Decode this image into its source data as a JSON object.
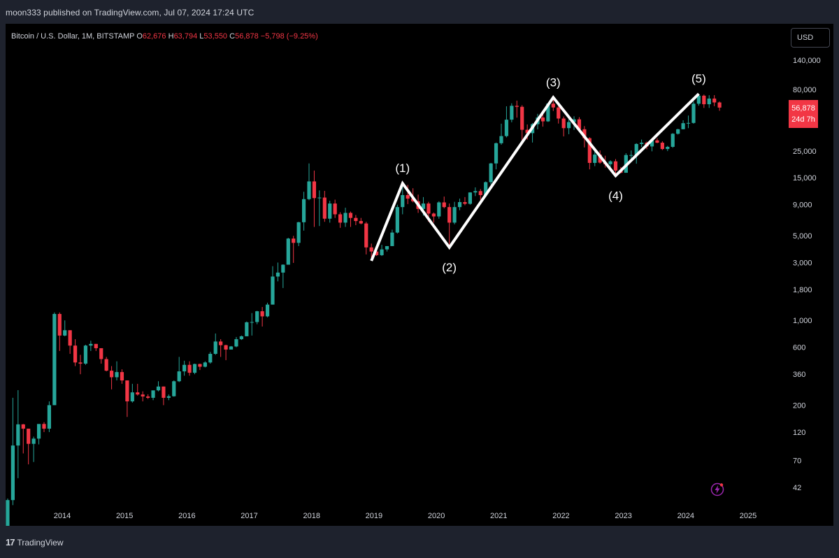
{
  "header": {
    "published": "moon333 published on TradingView.com, Jul 07, 2024 17:24 UTC"
  },
  "symbol": {
    "name": "Bitcoin / U.S. Dollar, 1M, BITSTAMP",
    "open_label": "O",
    "open": "62,676",
    "high_label": "H",
    "high": "63,794",
    "low_label": "L",
    "low": "53,550",
    "close_label": "C",
    "close": "56,878",
    "change": "−5,798 (−9.25%)"
  },
  "currency": "USD",
  "last_price": {
    "value": "56,878",
    "countdown": "24d 7h"
  },
  "footer": {
    "brand": "TradingView"
  },
  "colors": {
    "up": "#26a69a",
    "down": "#f23645",
    "background": "#000000",
    "wave_line": "#ffffff"
  },
  "icons": {
    "lightning": "lightning-icon"
  },
  "chart_data": {
    "type": "candlestick",
    "scale": "log",
    "interval": "1M",
    "y_ticks": [
      "140,000",
      "80,000",
      "25,000",
      "15,000",
      "9,000",
      "5,000",
      "3,000",
      "1,800",
      "1,000",
      "600",
      "360",
      "200",
      "120",
      "70",
      "42"
    ],
    "y_tick_values": [
      140000,
      80000,
      25000,
      15000,
      9000,
      5000,
      3000,
      1800,
      1000,
      600,
      360,
      200,
      120,
      70,
      42
    ],
    "x_ticks": [
      "2014",
      "2015",
      "2016",
      "2017",
      "2018",
      "2019",
      "2020",
      "2021",
      "2022",
      "2023",
      "2024",
      "2025"
    ],
    "x_tick_values": [
      2014,
      2015,
      2016,
      2017,
      2018,
      2019,
      2020,
      2021,
      2022,
      2023,
      2024,
      2025
    ],
    "ylim": [
      30,
      180000
    ],
    "xlim": [
      2013.0,
      2025.2
    ],
    "candles_ohlc_start": "2013-01",
    "candles_ohlc": [
      [
        13,
        20,
        13,
        20
      ],
      [
        20,
        34,
        19,
        33
      ],
      [
        33,
        230,
        30,
        93
      ],
      [
        93,
        266,
        50,
        139
      ],
      [
        139,
        140,
        80,
        128
      ],
      [
        128,
        128,
        65,
        96
      ],
      [
        96,
        110,
        68,
        106
      ],
      [
        106,
        130,
        95,
        140
      ],
      [
        140,
        145,
        120,
        128
      ],
      [
        128,
        215,
        120,
        200
      ],
      [
        200,
        1163,
        200,
        1130
      ],
      [
        1130,
        1163,
        560,
        750
      ],
      [
        750,
        1000,
        740,
        830
      ],
      [
        830,
        830,
        530,
        620
      ],
      [
        620,
        700,
        420,
        450
      ],
      [
        450,
        520,
        360,
        440
      ],
      [
        440,
        630,
        430,
        620
      ],
      [
        620,
        680,
        560,
        640
      ],
      [
        640,
        640,
        560,
        590
      ],
      [
        590,
        590,
        440,
        480
      ],
      [
        480,
        500,
        380,
        385
      ],
      [
        385,
        420,
        270,
        340
      ],
      [
        340,
        460,
        320,
        375
      ],
      [
        375,
        395,
        300,
        320
      ],
      [
        320,
        320,
        160,
        215
      ],
      [
        215,
        300,
        210,
        255
      ],
      [
        255,
        300,
        240,
        245
      ],
      [
        245,
        260,
        215,
        236
      ],
      [
        236,
        246,
        225,
        230
      ],
      [
        230,
        260,
        220,
        265
      ],
      [
        265,
        315,
        260,
        285
      ],
      [
        285,
        285,
        200,
        230
      ],
      [
        230,
        245,
        220,
        237
      ],
      [
        237,
        320,
        235,
        315
      ],
      [
        315,
        500,
        310,
        380
      ],
      [
        380,
        465,
        350,
        430
      ],
      [
        430,
        460,
        350,
        370
      ],
      [
        370,
        440,
        360,
        437
      ],
      [
        437,
        440,
        390,
        415
      ],
      [
        415,
        460,
        410,
        450
      ],
      [
        450,
        550,
        440,
        530
      ],
      [
        530,
        780,
        520,
        670
      ],
      [
        670,
        700,
        500,
        625
      ],
      [
        625,
        630,
        470,
        575
      ],
      [
        575,
        615,
        590,
        610
      ],
      [
        610,
        730,
        600,
        700
      ],
      [
        700,
        750,
        690,
        740
      ],
      [
        740,
        980,
        740,
        965
      ],
      [
        965,
        1150,
        750,
        970
      ],
      [
        970,
        1200,
        930,
        1190
      ],
      [
        1190,
        1290,
        890,
        1080
      ],
      [
        1080,
        1400,
        1060,
        1350
      ],
      [
        1350,
        2800,
        1350,
        2300
      ],
      [
        2300,
        3000,
        2100,
        2480
      ],
      [
        2480,
        2900,
        1850,
        2880
      ],
      [
        2880,
        4800,
        2880,
        4730
      ],
      [
        4730,
        4980,
        2980,
        4360
      ],
      [
        4360,
        6500,
        4100,
        6450
      ],
      [
        6450,
        11500,
        5500,
        10000
      ],
      [
        10000,
        19700,
        9800,
        14000
      ],
      [
        14000,
        17200,
        5900,
        10200
      ],
      [
        10200,
        11800,
        6000,
        10300
      ],
      [
        10300,
        11700,
        6500,
        6900
      ],
      [
        6900,
        9700,
        6400,
        9200
      ],
      [
        9200,
        9900,
        7000,
        7500
      ],
      [
        7500,
        7800,
        5800,
        6400
      ],
      [
        6400,
        8500,
        5900,
        7700
      ],
      [
        7700,
        7900,
        5900,
        7000
      ],
      [
        7000,
        7400,
        6100,
        6600
      ],
      [
        6600,
        7000,
        6200,
        6300
      ],
      [
        6300,
        6500,
        3500,
        4000
      ],
      [
        4000,
        4300,
        3200,
        3700
      ],
      [
        3700,
        4100,
        3400,
        3450
      ],
      [
        3450,
        4200,
        3400,
        3850
      ],
      [
        3850,
        4100,
        3700,
        4100
      ],
      [
        4100,
        5600,
        4100,
        5300
      ],
      [
        5300,
        9000,
        5200,
        8600
      ],
      [
        8600,
        13800,
        7500,
        10800
      ],
      [
        10800,
        13100,
        9100,
        10100
      ],
      [
        10100,
        12300,
        9400,
        9600
      ],
      [
        9600,
        10900,
        7700,
        8300
      ],
      [
        8300,
        10400,
        7300,
        9200
      ],
      [
        9200,
        9500,
        6500,
        7600
      ],
      [
        7600,
        7750,
        6400,
        7200
      ],
      [
        7200,
        9600,
        6900,
        9400
      ],
      [
        9400,
        10500,
        8400,
        8600
      ],
      [
        8600,
        9200,
        3850,
        6400
      ],
      [
        6400,
        9500,
        6200,
        8600
      ],
      [
        8600,
        10100,
        8100,
        9450
      ],
      [
        9450,
        10400,
        8900,
        9150
      ],
      [
        9150,
        11400,
        9000,
        11350
      ],
      [
        11350,
        12500,
        10600,
        11650
      ],
      [
        11650,
        12100,
        9900,
        10800
      ],
      [
        10800,
        14000,
        10400,
        13800
      ],
      [
        13800,
        19900,
        13200,
        19700
      ],
      [
        19700,
        29300,
        17600,
        28900
      ],
      [
        28900,
        41900,
        28100,
        33100
      ],
      [
        33100,
        58300,
        32300,
        45200
      ],
      [
        45200,
        61700,
        43000,
        58800
      ],
      [
        58800,
        64900,
        47000,
        57700
      ],
      [
        57700,
        59500,
        30000,
        37300
      ],
      [
        37300,
        41300,
        31000,
        35000
      ],
      [
        35000,
        42400,
        29300,
        41500
      ],
      [
        41500,
        50500,
        37600,
        47100
      ],
      [
        47100,
        52900,
        39600,
        43800
      ],
      [
        43800,
        61500,
        43300,
        61300
      ],
      [
        61300,
        69000,
        53300,
        57000
      ],
      [
        57000,
        59100,
        42000,
        46200
      ],
      [
        46200,
        48000,
        32900,
        38500
      ],
      [
        38500,
        45800,
        34300,
        43200
      ],
      [
        43200,
        48200,
        37200,
        45500
      ],
      [
        45500,
        47400,
        37800,
        37700
      ],
      [
        37700,
        40000,
        26700,
        31800
      ],
      [
        31800,
        32400,
        17600,
        19900
      ],
      [
        19900,
        24700,
        18700,
        23300
      ],
      [
        23300,
        25200,
        19600,
        20000
      ],
      [
        20000,
        22800,
        18200,
        19400
      ],
      [
        19400,
        20900,
        18100,
        20500
      ],
      [
        20500,
        21400,
        15500,
        17200
      ],
      [
        17200,
        18400,
        16300,
        16500
      ],
      [
        16500,
        23900,
        16500,
        23100
      ],
      [
        23100,
        25200,
        21400,
        23100
      ],
      [
        23100,
        28900,
        19600,
        28500
      ],
      [
        28500,
        31000,
        26900,
        29200
      ],
      [
        29200,
        29800,
        25800,
        27200
      ],
      [
        27200,
        31400,
        24800,
        30500
      ],
      [
        30500,
        31800,
        28900,
        29200
      ],
      [
        29200,
        30000,
        25400,
        25900
      ],
      [
        25900,
        27500,
        24900,
        27000
      ],
      [
        27000,
        35000,
        26500,
        34600
      ],
      [
        34600,
        38000,
        34100,
        37700
      ],
      [
        37700,
        44700,
        37600,
        42300
      ],
      [
        42300,
        48900,
        38500,
        42500
      ],
      [
        42500,
        64000,
        41900,
        61200
      ],
      [
        61200,
        73800,
        59000,
        71300
      ],
      [
        71300,
        72800,
        56500,
        60600
      ],
      [
        60600,
        71900,
        56500,
        67500
      ],
      [
        67500,
        72000,
        58400,
        62700
      ],
      [
        62700,
        63800,
        53550,
        56878
      ]
    ],
    "wave_points": [
      {
        "label": "",
        "date": "2018-12",
        "price": 3100
      },
      {
        "label": "(1)",
        "date": "2019-06",
        "price": 13500
      },
      {
        "label": "(2)",
        "date": "2020-03",
        "price": 4000
      },
      {
        "label": "(3)",
        "date": "2021-11",
        "price": 69000
      },
      {
        "label": "(4)",
        "date": "2022-11",
        "price": 15600
      },
      {
        "label": "(5)",
        "date": "2024-03",
        "price": 73800
      }
    ]
  }
}
